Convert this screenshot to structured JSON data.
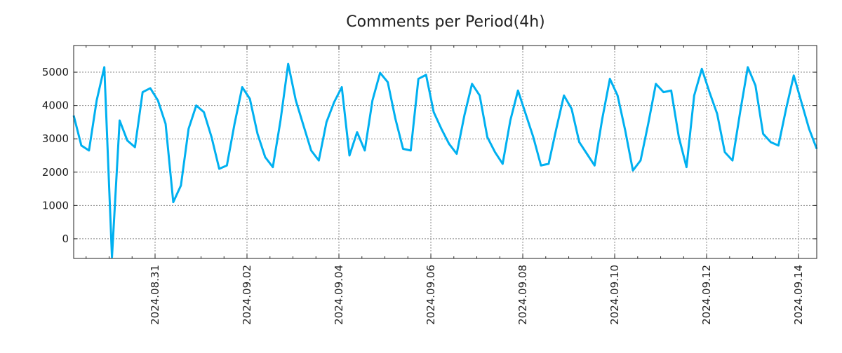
{
  "chart_data": {
    "type": "line",
    "title": "Comments per Period(4h)",
    "xlabel": "",
    "ylabel": "",
    "x_start": "2024-08-29T05:30",
    "step_hours": 4,
    "ylim": [
      -590,
      5800
    ],
    "yticks": [
      0,
      1000,
      2000,
      3000,
      4000,
      5000
    ],
    "xticks": [
      "2024.08.31",
      "2024.09.02",
      "2024.09.04",
      "2024.09.06",
      "2024.09.08",
      "2024.09.10",
      "2024.09.12",
      "2024.09.14"
    ],
    "grid": true,
    "line_color": "#00b0f0",
    "series": [
      {
        "name": "comments",
        "values": [
          3700,
          2800,
          2650,
          4150,
          5150,
          -550,
          3550,
          2950,
          2750,
          4400,
          4520,
          4150,
          3450,
          1100,
          1600,
          3300,
          4000,
          3800,
          3050,
          2100,
          2200,
          3450,
          4550,
          4200,
          3150,
          2450,
          2150,
          3550,
          5250,
          4150,
          3400,
          2650,
          2350,
          3500,
          4100,
          4550,
          2500,
          3200,
          2650,
          4150,
          4980,
          4700,
          3600,
          2700,
          2650,
          4800,
          4920,
          3800,
          3300,
          2850,
          2550,
          3700,
          4650,
          4300,
          3050,
          2600,
          2250,
          3550,
          4450,
          3750,
          3050,
          2200,
          2250,
          3300,
          4300,
          3900,
          2900,
          2550,
          2200,
          3600,
          4800,
          4300,
          3250,
          2050,
          2350,
          3450,
          4650,
          4400,
          4450,
          3050,
          2150,
          4300,
          5100,
          4400,
          3750,
          2600,
          2350,
          3800,
          5150,
          4600,
          3150,
          2900,
          2800,
          3900,
          4900,
          4100,
          3300,
          2700
        ]
      }
    ]
  }
}
